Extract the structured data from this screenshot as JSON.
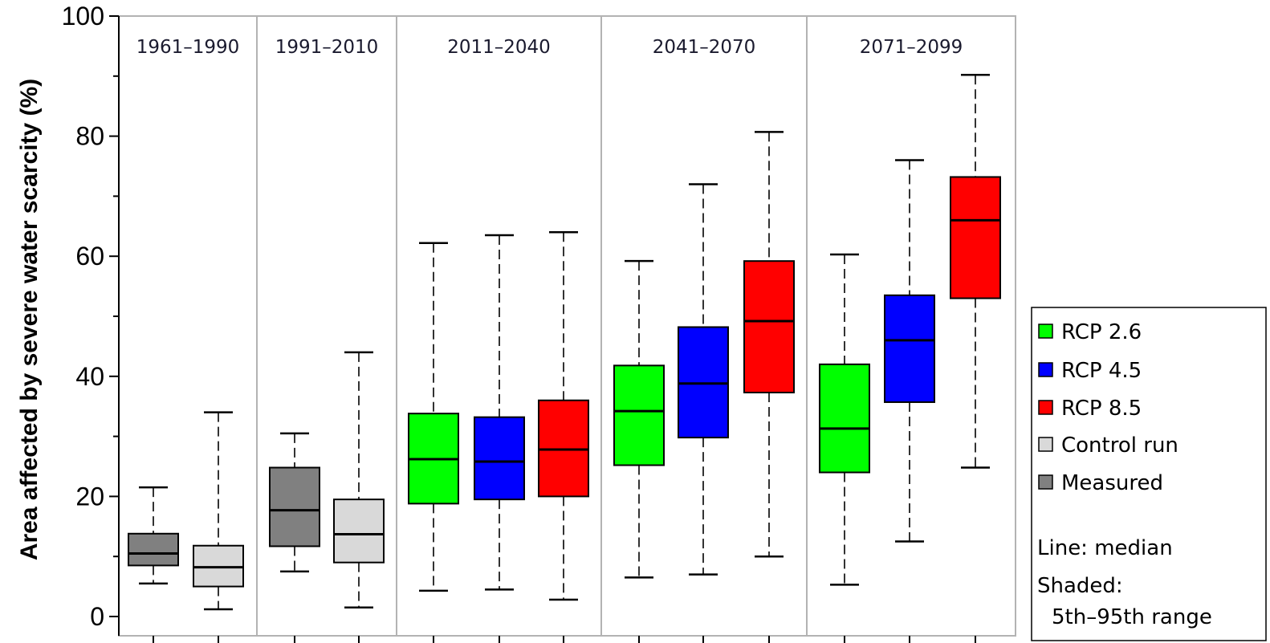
{
  "chart_data": {
    "type": "boxplot",
    "title": "",
    "xlabel": "",
    "ylabel": "Area affected by severe water scarcity (%)",
    "ylim": [
      0,
      100
    ],
    "yticks": [
      "0",
      "20",
      "40",
      "60",
      "80",
      "100"
    ],
    "grid": false,
    "legend_position": "right",
    "periods": [
      "1961–1990",
      "1991–2010",
      "2011–2040",
      "2041–2070",
      "2071–2099"
    ],
    "series_styles": [
      {
        "key": "rcp26",
        "name": "RCP 2.6",
        "color": "#00ff00"
      },
      {
        "key": "rcp45",
        "name": "RCP 4.5",
        "color": "#0000ff"
      },
      {
        "key": "rcp85",
        "name": "RCP 8.5",
        "color": "#ff0000"
      },
      {
        "key": "control",
        "name": "Control run",
        "color": "#d9d9d9"
      },
      {
        "key": "measured",
        "name": "Measured",
        "color": "#808080"
      }
    ],
    "boxes": [
      {
        "period": 0,
        "series": "measured",
        "whisker_low": 5.5,
        "q1": 8.5,
        "median": 10.5,
        "q3": 13.8,
        "whisker_high": 21.5
      },
      {
        "period": 0,
        "series": "control",
        "whisker_low": 1.2,
        "q1": 5.0,
        "median": 8.2,
        "q3": 11.8,
        "whisker_high": 34.0
      },
      {
        "period": 1,
        "series": "measured",
        "whisker_low": 7.5,
        "q1": 11.7,
        "median": 17.7,
        "q3": 24.8,
        "whisker_high": 30.5
      },
      {
        "period": 1,
        "series": "control",
        "whisker_low": 1.5,
        "q1": 9.0,
        "median": 13.7,
        "q3": 19.5,
        "whisker_high": 44.0
      },
      {
        "period": 2,
        "series": "rcp26",
        "whisker_low": 4.3,
        "q1": 18.8,
        "median": 26.2,
        "q3": 33.8,
        "whisker_high": 62.2
      },
      {
        "period": 2,
        "series": "rcp45",
        "whisker_low": 4.5,
        "q1": 19.5,
        "median": 25.8,
        "q3": 33.2,
        "whisker_high": 63.5
      },
      {
        "period": 2,
        "series": "rcp85",
        "whisker_low": 2.8,
        "q1": 20.0,
        "median": 27.8,
        "q3": 36.0,
        "whisker_high": 64.0
      },
      {
        "period": 3,
        "series": "rcp26",
        "whisker_low": 6.5,
        "q1": 25.2,
        "median": 34.2,
        "q3": 41.8,
        "whisker_high": 59.2
      },
      {
        "period": 3,
        "series": "rcp45",
        "whisker_low": 7.0,
        "q1": 29.8,
        "median": 38.8,
        "q3": 48.2,
        "whisker_high": 72.0
      },
      {
        "period": 3,
        "series": "rcp85",
        "whisker_low": 10.0,
        "q1": 37.3,
        "median": 49.2,
        "q3": 59.2,
        "whisker_high": 80.7
      },
      {
        "period": 4,
        "series": "rcp26",
        "whisker_low": 5.3,
        "q1": 24.0,
        "median": 31.3,
        "q3": 42.0,
        "whisker_high": 60.3
      },
      {
        "period": 4,
        "series": "rcp45",
        "whisker_low": 12.5,
        "q1": 35.7,
        "median": 46.0,
        "q3": 53.5,
        "whisker_high": 76.0
      },
      {
        "period": 4,
        "series": "rcp85",
        "whisker_low": 24.8,
        "q1": 53.0,
        "median": 66.0,
        "q3": 73.2,
        "whisker_high": 90.2
      }
    ],
    "legend_notes": [
      "Line: median",
      "Shaded:",
      "5th–95th range"
    ]
  }
}
